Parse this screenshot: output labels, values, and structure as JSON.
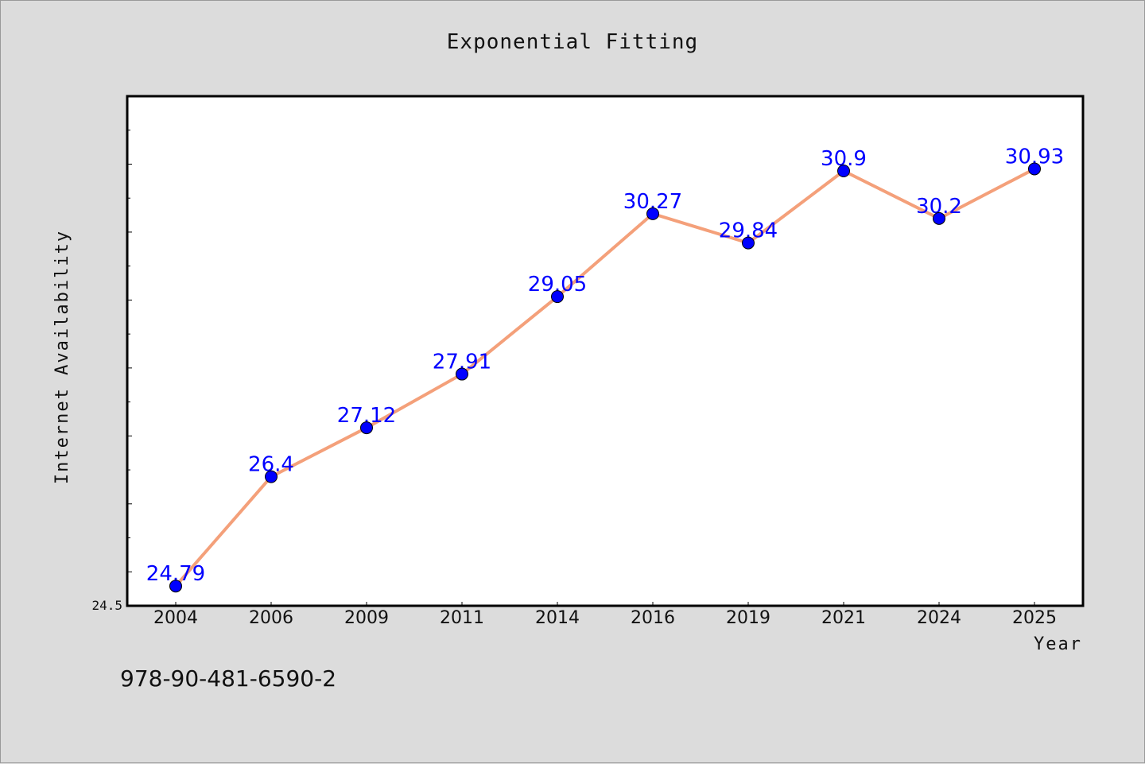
{
  "chart_data": {
    "type": "line",
    "title": "Exponential Fitting",
    "xlabel": "Year",
    "ylabel": "Internet Availability",
    "categories": [
      "2004",
      "2006",
      "2009",
      "2011",
      "2014",
      "2016",
      "2019",
      "2021",
      "2024",
      "2025"
    ],
    "series": [
      {
        "values": [
          24.79,
          26.4,
          27.12,
          27.91,
          29.05,
          30.27,
          29.84,
          30.9,
          30.2,
          30.93
        ],
        "line_color": "#f4a07a",
        "marker_color": "#0000ff"
      }
    ],
    "data_labels": [
      "24.79",
      "26.4",
      "27.12",
      "27.91",
      "29.05",
      "30.27",
      "29.84",
      "30.9",
      "30.2",
      "30.93"
    ],
    "yticks": [
      "24.5"
    ],
    "ylim": [
      24.5,
      32.0
    ],
    "grid": false,
    "legend": "none"
  },
  "footer_text": "978-90-481-6590-2"
}
